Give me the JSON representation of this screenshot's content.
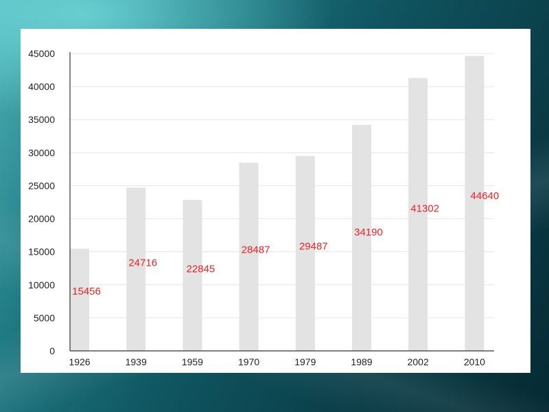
{
  "colors": {
    "bar": "#e3e3e3",
    "label": "#ee2222",
    "grid": "#e6e6e6",
    "axis": "#333333",
    "panel": "#ffffff"
  },
  "chart_data": {
    "type": "bar",
    "categories": [
      "1926",
      "1939",
      "1959",
      "1970",
      "1979",
      "1989",
      "2002",
      "2010"
    ],
    "values": [
      15456,
      24716,
      22845,
      28487,
      29487,
      34190,
      41302,
      44640
    ],
    "data_labels": [
      "15456",
      "24716",
      "22845",
      "28487",
      "29487",
      "34190",
      "41302",
      "44640"
    ],
    "title": "",
    "xlabel": "",
    "ylabel": "",
    "ylim": [
      0,
      45000
    ],
    "yticks": [
      0,
      5000,
      10000,
      15000,
      20000,
      25000,
      30000,
      35000,
      40000,
      45000
    ],
    "ytick_labels": [
      "0",
      "5000",
      "10000",
      "15000",
      "20000",
      "25000",
      "30000",
      "35000",
      "40000",
      "45000"
    ],
    "grid": true,
    "legend": false
  }
}
